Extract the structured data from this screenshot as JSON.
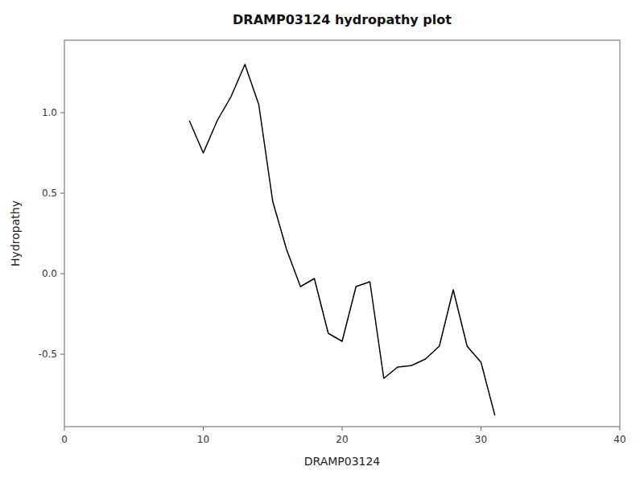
{
  "chart_data": {
    "type": "line",
    "title": "DRAMP03124 hydropathy plot",
    "xlabel": "DRAMP03124",
    "ylabel": "Hydropathy",
    "x": [
      9,
      10,
      11,
      12,
      13,
      14,
      15,
      16,
      17,
      18,
      19,
      20,
      21,
      22,
      23,
      24,
      25,
      26,
      27,
      28,
      29,
      30,
      31
    ],
    "values": [
      0.95,
      0.75,
      0.95,
      1.1,
      1.3,
      1.05,
      0.45,
      0.15,
      -0.08,
      -0.03,
      -0.37,
      -0.42,
      -0.08,
      -0.05,
      -0.65,
      -0.58,
      -0.57,
      -0.53,
      -0.45,
      -0.1,
      -0.45,
      -0.55,
      -0.88
    ],
    "color": "#000000",
    "xlim": [
      0,
      40
    ],
    "ylim": [
      -0.95,
      1.45
    ],
    "xticks": [
      0,
      10,
      20,
      30,
      40
    ],
    "yticks": [
      -0.5,
      {
        "value": 0,
        "label": "0.0"
      },
      0.5,
      {
        "value": 1,
        "label": "1.0"
      }
    ],
    "grid": false
  }
}
